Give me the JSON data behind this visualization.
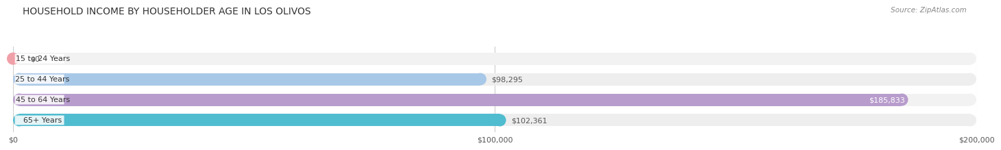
{
  "title": "HOUSEHOLD INCOME BY HOUSEHOLDER AGE IN LOS OLIVOS",
  "source": "Source: ZipAtlas.com",
  "categories": [
    "15 to 24 Years",
    "25 to 44 Years",
    "45 to 64 Years",
    "65+ Years"
  ],
  "values": [
    0,
    98295,
    185833,
    102361
  ],
  "value_labels": [
    "$0",
    "$98,295",
    "$185,833",
    "$102,361"
  ],
  "bar_colors": [
    "#f0a0a8",
    "#a8c8e8",
    "#b89ccc",
    "#50bcd0"
  ],
  "bg_colors": [
    "#f2f2f2",
    "#eeeeee",
    "#f2f2f2",
    "#eeeeee"
  ],
  "xmax": 200000,
  "xticks": [
    0,
    100000,
    200000
  ],
  "xtick_labels": [
    "$0",
    "$100,000",
    "$200,000"
  ],
  "title_fontsize": 10,
  "source_fontsize": 7.5,
  "label_fontsize": 8,
  "value_fontsize": 8,
  "background_color": "#ffffff",
  "value_label_inside_color": [
    "#555555",
    "#555555",
    "#ffffff",
    "#555555"
  ],
  "value_label_inside": [
    false,
    false,
    true,
    false
  ]
}
